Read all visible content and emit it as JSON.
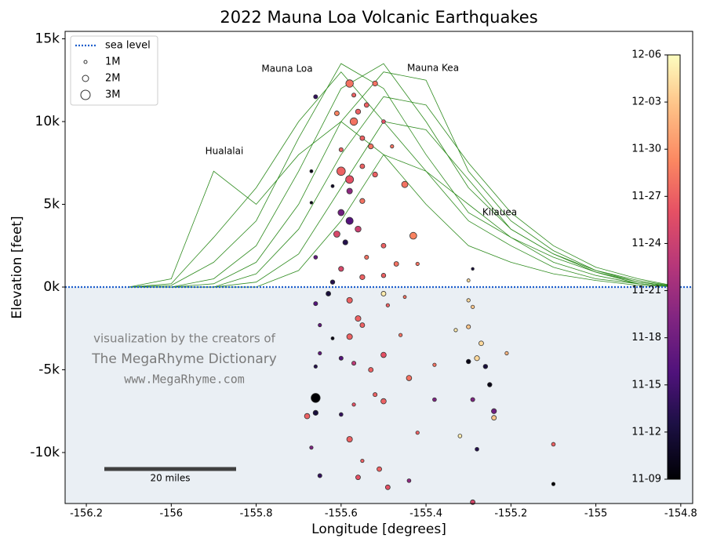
{
  "chart_data": {
    "type": "scatter",
    "title": "2022 Mauna Loa Volcanic Earthquakes",
    "x_label": "Longitude [degrees]",
    "y_label": "Elevation [feet]",
    "xlim": [
      -156.25,
      -154.772
    ],
    "ylim": [
      -13080,
      15450
    ],
    "xticks": [
      -156.2,
      -156.0,
      -155.8,
      -155.6,
      -155.4,
      -155.2,
      -155.0,
      -154.8
    ],
    "yticks": [
      {
        "value": -10000,
        "label": "-10k"
      },
      {
        "value": -5000,
        "label": "-5k"
      },
      {
        "value": 0,
        "label": "0k"
      },
      {
        "value": 5000,
        "label": "5k"
      },
      {
        "value": 10000,
        "label": "10k"
      },
      {
        "value": 15000,
        "label": "15k"
      }
    ],
    "sea_level": {
      "name": "sea level",
      "value": 0,
      "color": "#1f5fcc"
    },
    "size_legend": [
      {
        "value": 1,
        "label": "1M"
      },
      {
        "value": 2,
        "label": "2M"
      },
      {
        "value": 3,
        "label": "3M"
      }
    ],
    "colorbar": {
      "clim": [
        "11-09",
        "12-06"
      ],
      "ticks": [
        "11-09",
        "11-12",
        "11-15",
        "11-18",
        "11-21",
        "11-24",
        "11-27",
        "11-30",
        "12-03",
        "12-06"
      ]
    },
    "annotations": [
      "Mauna Loa",
      "Mauna Kea",
      "Hualalai",
      "Kilauea"
    ],
    "credits": [
      "visualization by the creators of",
      "The MegaRhyme Dictionary",
      "www.MegaRhyme.com"
    ],
    "scale_bar": "20 miles",
    "profile_color": "#2e8b1e",
    "profile_x": [
      -156.1,
      -156.0,
      -155.9,
      -155.8,
      -155.7,
      -155.6,
      -155.5,
      -155.4,
      -155.3,
      -155.2,
      -155.1,
      -155.0,
      -154.9,
      -154.8
    ],
    "profiles": [
      [
        0,
        500,
        7000,
        5000,
        8000,
        10000,
        8000,
        5000,
        2500,
        1500,
        800,
        400,
        100,
        0
      ],
      [
        0,
        200,
        3000,
        6000,
        10000,
        13000,
        10000,
        7000,
        4000,
        2500,
        1200,
        500,
        200,
        0
      ],
      [
        0,
        100,
        1500,
        4000,
        9000,
        13500,
        12000,
        8000,
        4500,
        3000,
        1500,
        700,
        200,
        0
      ],
      [
        0,
        0,
        500,
        2500,
        7000,
        12000,
        13500,
        10000,
        6000,
        3500,
        2000,
        900,
        300,
        0
      ],
      [
        0,
        0,
        200,
        1500,
        5000,
        10000,
        13000,
        12500,
        7000,
        4000,
        2200,
        1000,
        400,
        0
      ],
      [
        0,
        0,
        0,
        800,
        3500,
        8000,
        11500,
        11000,
        7500,
        4500,
        2500,
        1200,
        500,
        0
      ],
      [
        0,
        0,
        0,
        300,
        2000,
        6000,
        10000,
        9500,
        6500,
        3500,
        2000,
        1000,
        300,
        0
      ],
      [
        0,
        0,
        0,
        0,
        1000,
        4000,
        8000,
        7000,
        5000,
        3000,
        1800,
        900,
        200,
        0
      ]
    ],
    "x": [
      -155.58,
      -155.52,
      -155.57,
      -155.66,
      -155.54,
      -155.56,
      -155.57,
      -155.61,
      -155.5,
      -155.55,
      -155.53,
      -155.6,
      -155.48,
      -155.6,
      -155.58,
      -155.55,
      -155.52,
      -155.45,
      -155.62,
      -155.67,
      -155.58,
      -155.55,
      -155.67,
      -155.6,
      -155.58,
      -155.56,
      -155.61,
      -155.43,
      -155.59,
      -155.5,
      -155.54,
      -155.66,
      -155.6,
      -155.47,
      -155.42,
      -155.5,
      -155.55,
      -155.62,
      -155.29,
      -155.3,
      -155.63,
      -155.58,
      -155.5,
      -155.45,
      -155.66,
      -155.56,
      -155.49,
      -155.65,
      -155.55,
      -155.58,
      -155.62,
      -155.46,
      -155.5,
      -155.65,
      -155.6,
      -155.57,
      -155.53,
      -155.44,
      -155.66,
      -155.66,
      -155.52,
      -155.5,
      -155.57,
      -155.68,
      -155.66,
      -155.6,
      -155.58,
      -155.67,
      -155.55,
      -155.51,
      -155.56,
      -155.49,
      -155.44,
      -155.42,
      -155.29,
      -155.3,
      -155.28,
      -155.26,
      -155.25,
      -155.29,
      -155.24,
      -155.24,
      -155.3,
      -155.33,
      -155.27,
      -155.21,
      -155.29,
      -155.3,
      -155.32,
      -155.1,
      -155.1,
      -155.38,
      -155.38,
      -155.65,
      -155.28
    ],
    "y": [
      12300,
      12300,
      11600,
      11500,
      11000,
      10600,
      10000,
      10500,
      10000,
      9000,
      8500,
      8300,
      8500,
      7000,
      6500,
      7300,
      6800,
      6200,
      6100,
      7000,
      5800,
      5200,
      5100,
      4500,
      4000,
      3500,
      3200,
      3100,
      2700,
      2500,
      1800,
      1800,
      1100,
      1400,
      1400,
      700,
      600,
      300,
      1100,
      400,
      -400,
      -800,
      -400,
      -600,
      -1000,
      -1900,
      -1100,
      -2300,
      -2300,
      -3000,
      -3100,
      -2900,
      -4100,
      -4000,
      -4300,
      -4600,
      -5000,
      -5500,
      -4800,
      -6700,
      -6500,
      -6900,
      -7100,
      -7800,
      -7600,
      -7700,
      -9200,
      -9700,
      -10500,
      -11000,
      -11500,
      -12100,
      -11700,
      -8800,
      -13000,
      -4500,
      -4300,
      -4800,
      -5900,
      -6800,
      -7500,
      -7900,
      -2400,
      -2600,
      -3400,
      -4000,
      -1200,
      -800,
      -9000,
      -9500,
      -11900,
      -6800,
      -4700,
      -11400,
      -9800
    ],
    "size": [
      2.4,
      1.6,
      1.3,
      1.3,
      1.5,
      1.6,
      2.4,
      1.5,
      1.2,
      1.5,
      1.6,
      1.3,
      1.1,
      2.7,
      2.5,
      1.5,
      1.6,
      2.0,
      1.0,
      1.0,
      1.8,
      1.6,
      0.9,
      2.0,
      2.3,
      1.9,
      2.0,
      2.2,
      1.6,
      1.5,
      1.3,
      1.2,
      1.6,
      1.5,
      1.1,
      1.4,
      1.6,
      1.4,
      0.9,
      1.0,
      1.5,
      1.8,
      1.5,
      1.0,
      1.3,
      1.8,
      1.1,
      1.1,
      1.5,
      1.8,
      1.0,
      1.1,
      1.7,
      1.1,
      1.3,
      1.3,
      1.5,
      1.7,
      1.1,
      2.9,
      1.3,
      1.7,
      1.1,
      1.7,
      1.6,
      1.2,
      1.8,
      1.1,
      1.1,
      1.5,
      1.5,
      1.5,
      1.2,
      1.1,
      1.5,
      1.4,
      1.6,
      1.4,
      1.4,
      1.3,
      1.6,
      1.5,
      1.3,
      1.1,
      1.5,
      1.1,
      1.1,
      1.1,
      1.2,
      1.2,
      1.1,
      1.2,
      1.1,
      1.3,
      1.2
    ],
    "date": [
      "11-28",
      "11-28",
      "11-27",
      "11-14",
      "11-27",
      "11-27",
      "11-28",
      "11-29",
      "11-26",
      "11-27",
      "11-28",
      "11-27",
      "11-28",
      "11-27",
      "11-26",
      "11-27",
      "11-27",
      "11-28",
      "11-11",
      "11-10",
      "11-20",
      "11-28",
      "11-10",
      "11-18",
      "11-16",
      "11-24",
      "11-25",
      "11-29",
      "11-13",
      "11-27",
      "11-28",
      "11-17",
      "11-25",
      "11-28",
      "11-28",
      "11-27",
      "11-27",
      "11-13",
      "11-12",
      "12-04",
      "11-12",
      "11-27",
      "12-05",
      "11-28",
      "11-16",
      "11-27",
      "11-27",
      "11-17",
      "11-27",
      "11-27",
      "11-10",
      "11-28",
      "11-26",
      "11-17",
      "11-16",
      "11-23",
      "11-27",
      "11-28",
      "11-13",
      "11-09",
      "11-27",
      "11-27",
      "11-26",
      "11-27",
      "11-12",
      "11-14",
      "11-27",
      "11-19",
      "11-27",
      "11-27",
      "11-26",
      "11-26",
      "11-20",
      "11-27",
      "11-25",
      "11-10",
      "12-04",
      "11-12",
      "11-10",
      "11-19",
      "11-18",
      "12-03",
      "12-03",
      "12-05",
      "12-04",
      "12-02",
      "12-03",
      "12-04",
      "12-05",
      "11-27",
      "11-09",
      "11-19",
      "11-28",
      "11-14",
      "11-13"
    ]
  }
}
